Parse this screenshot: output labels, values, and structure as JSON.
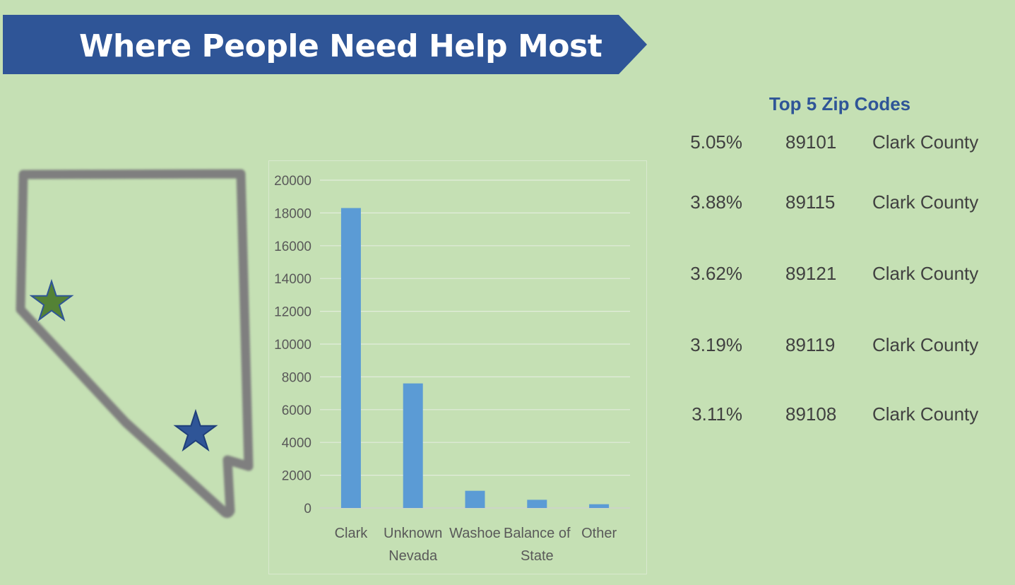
{
  "title": "Where People Need Help Most",
  "zip_table": {
    "title": "Top 5 Zip Codes",
    "rows": [
      {
        "pct": "5.05%",
        "zip": "89101",
        "county": "Clark County"
      },
      {
        "pct": "3.88%",
        "zip": "89115",
        "county": "Clark County"
      },
      {
        "pct": "3.62%",
        "zip": "89121",
        "county": "Clark County"
      },
      {
        "pct": "3.19%",
        "zip": "89119",
        "county": "Clark County"
      },
      {
        "pct": "3.11%",
        "zip": "89108",
        "county": "Clark County"
      }
    ]
  },
  "map": {
    "stars": [
      {
        "icon": "star-icon",
        "color": "#548235"
      },
      {
        "icon": "star-icon",
        "color": "#2f5597"
      }
    ]
  },
  "colors": {
    "banner": "#2f5597",
    "background": "#c5e0b4",
    "bar": "#5b9bd5",
    "outline": "#7f7f7f"
  },
  "chart_data": {
    "type": "bar",
    "categories": [
      [
        "Clark"
      ],
      [
        "Unknown",
        "Nevada"
      ],
      [
        "Washoe"
      ],
      [
        "Balance of",
        "State"
      ],
      [
        "Other"
      ]
    ],
    "values": [
      18300,
      7600,
      1050,
      500,
      230
    ],
    "ylim": [
      0,
      20000
    ],
    "yticks": [
      0,
      2000,
      4000,
      6000,
      8000,
      10000,
      12000,
      14000,
      16000,
      18000,
      20000
    ],
    "grid": true,
    "legend": "none"
  }
}
